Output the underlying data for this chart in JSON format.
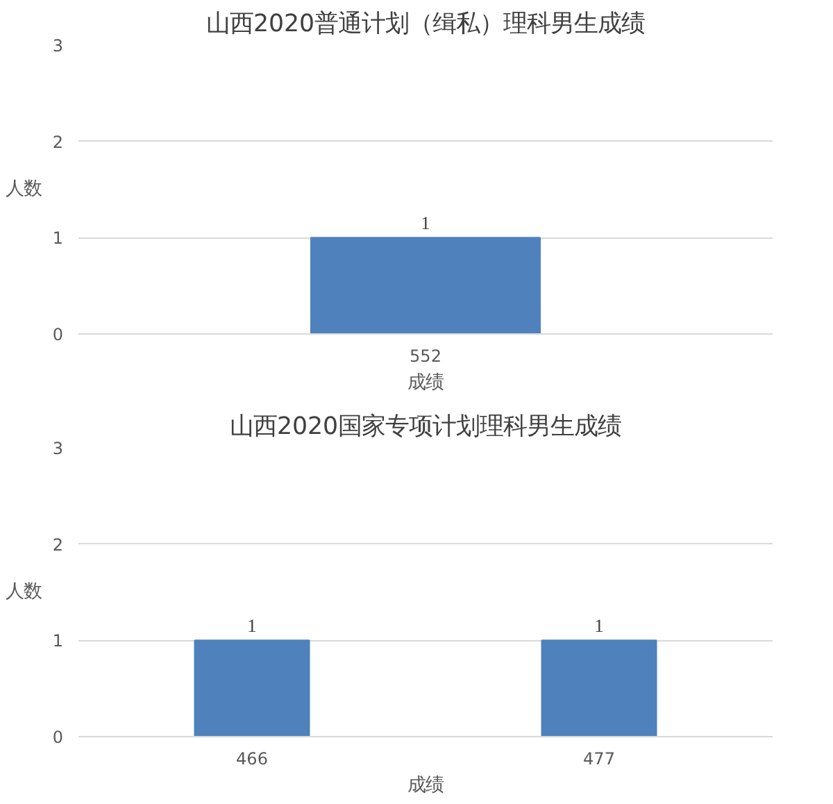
{
  "chart_data": [
    {
      "type": "bar",
      "title": "山西2020普通计划（缉私）理科男生成绩",
      "xlabel": "成绩",
      "ylabel": "人数",
      "categories": [
        "552"
      ],
      "values": [
        1
      ],
      "color": "#4f81bd",
      "ylim": [
        0,
        3
      ],
      "yticks": [
        0,
        1,
        2,
        3
      ],
      "grid": "y",
      "data_labels": true
    },
    {
      "type": "bar",
      "title": "山西2020国家专项计划理科男生成绩",
      "xlabel": "成绩",
      "ylabel": "人数",
      "categories": [
        "466",
        "477"
      ],
      "values": [
        1,
        1
      ],
      "color": "#4f81bd",
      "ylim": [
        0,
        3
      ],
      "yticks": [
        0,
        1,
        2,
        3
      ],
      "grid": "y",
      "data_labels": true
    }
  ]
}
